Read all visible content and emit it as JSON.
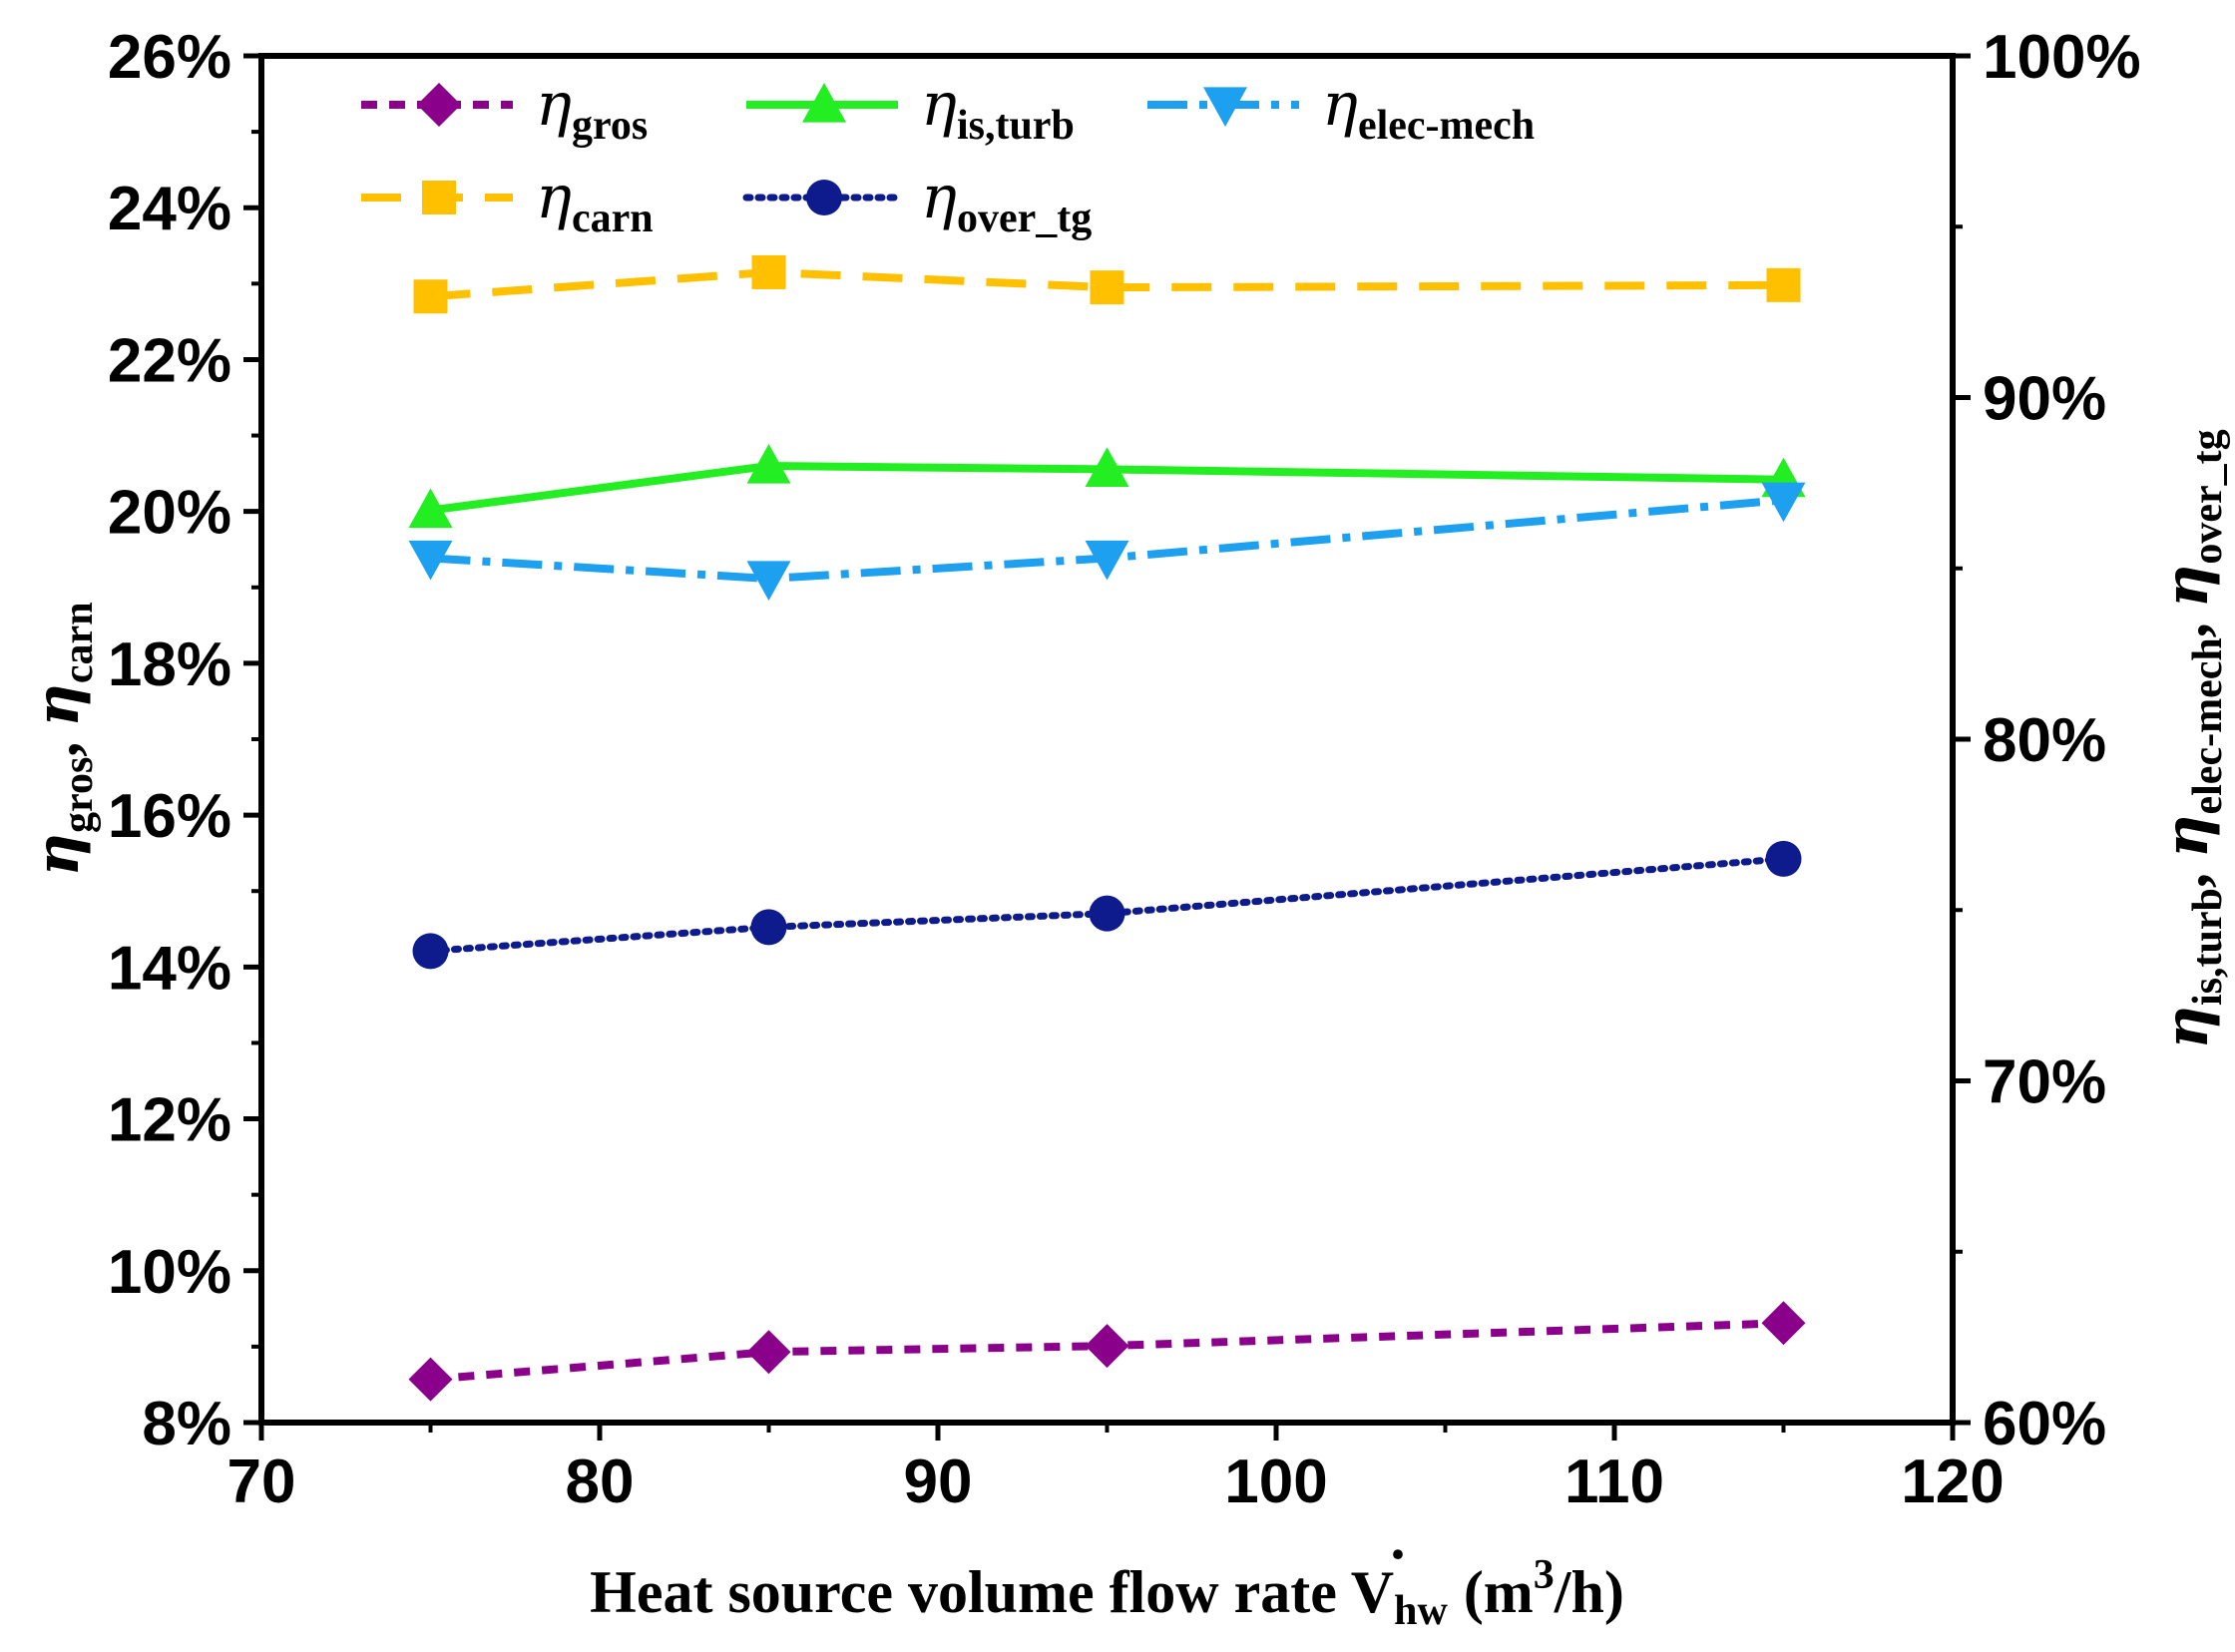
{
  "chart_data": {
    "type": "line",
    "x": [
      75,
      85,
      95,
      115
    ],
    "xlim": [
      70,
      120
    ],
    "xticks": [
      70,
      80,
      90,
      100,
      110,
      120
    ],
    "xtick_labels": [
      "70",
      "80",
      "90",
      "100",
      "110",
      "120"
    ],
    "xlabel": {
      "main": "Heat source volume flow rate V",
      "dot": "·",
      "sub": "hw",
      "unit_pre": "(m",
      "unit_sup": "3",
      "unit_post": "/h)"
    },
    "left_axis": {
      "ylim": [
        0.08,
        0.26
      ],
      "ticks": [
        0.08,
        0.1,
        0.12,
        0.14,
        0.16,
        0.18,
        0.2,
        0.22,
        0.24,
        0.26
      ],
      "tick_labels": [
        "8%",
        "10%",
        "12%",
        "14%",
        "16%",
        "18%",
        "20%",
        "22%",
        "24%",
        "26%"
      ],
      "label": {
        "eta1": "η",
        "sub1": "gros",
        "sep": ", ",
        "eta2": "η",
        "sub2": "carn"
      }
    },
    "right_axis": {
      "ylim": [
        0.6,
        1.0
      ],
      "ticks": [
        0.6,
        0.7,
        0.8,
        0.9,
        1.0
      ],
      "tick_labels": [
        "60%",
        "70%",
        "80%",
        "90%",
        "100%"
      ],
      "label": {
        "eta1": "η",
        "sub1": "is,turb",
        "sep1": ", ",
        "eta2": "η",
        "sub2": "elec-mech",
        "sep2": ", ",
        "eta3": "η",
        "sub3": "over_tg"
      }
    },
    "series": [
      {
        "key": "gros",
        "name": "η",
        "sub": "gros",
        "axis": "left",
        "values": [
          0.0857,
          0.0893,
          0.0901,
          0.0931
        ],
        "color": "#8B008B",
        "marker": "diamond",
        "dash": "16,12"
      },
      {
        "key": "is_turb",
        "name": "η",
        "sub": "is,turb",
        "axis": "right",
        "values": [
          0.867,
          0.88,
          0.879,
          0.876
        ],
        "color": "#22EE22",
        "marker": "triangle-up",
        "dash": ""
      },
      {
        "key": "elec_mech",
        "name": "η",
        "sub": "elec-mech",
        "axis": "right",
        "values": [
          0.853,
          0.847,
          0.853,
          0.87
        ],
        "color": "#1EA0F0",
        "marker": "triangle-down",
        "dash": "40,12,8,12"
      },
      {
        "key": "carn",
        "name": "η",
        "sub": "carn",
        "axis": "left",
        "values": [
          0.2283,
          0.2315,
          0.2295,
          0.2298
        ],
        "color": "#FFC000",
        "marker": "square",
        "dash": "40,22"
      },
      {
        "key": "over_tg",
        "name": "η",
        "sub": "over_tg",
        "axis": "right",
        "values": [
          0.738,
          0.745,
          0.749,
          0.765
        ],
        "color": "#0D1B8C",
        "marker": "circle",
        "dash": "4,8"
      }
    ],
    "legend": {
      "position": "top-left",
      "order": [
        "gros",
        "is_turb",
        "elec_mech",
        "carn",
        "over_tg"
      ]
    }
  }
}
